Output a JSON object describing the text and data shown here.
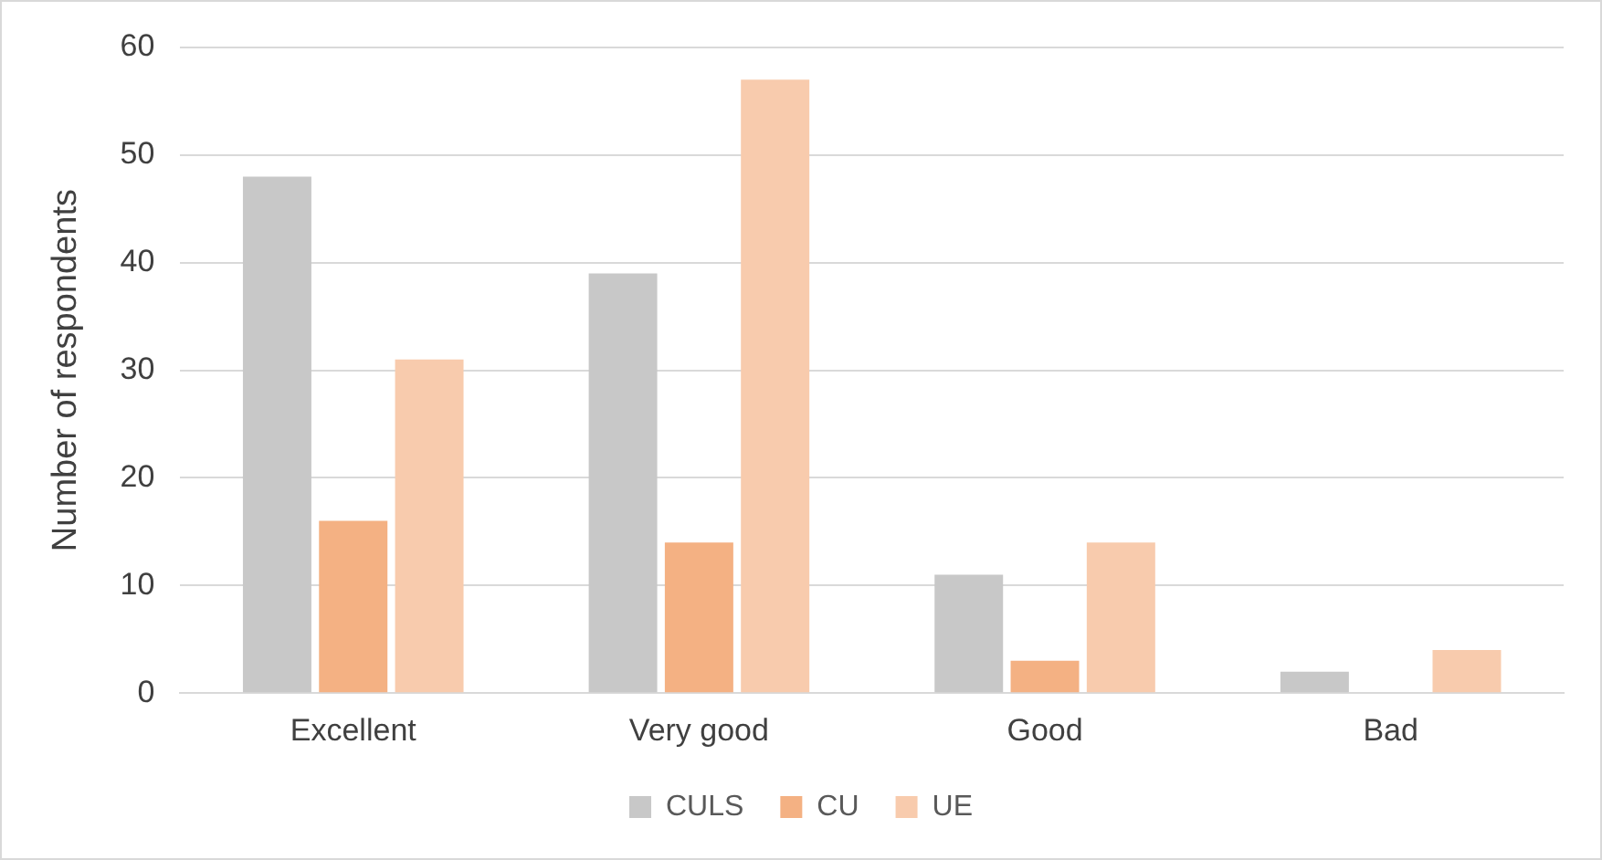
{
  "chart_data": {
    "type": "bar",
    "ylabel": "Number of respondents",
    "categories": [
      "Excellent",
      "Very good",
      "Good",
      "Bad"
    ],
    "series": [
      {
        "name": "CULS",
        "color": "#c8c8c8",
        "values": [
          48,
          39,
          11,
          2
        ]
      },
      {
        "name": "CU",
        "color": "#f4b183",
        "values": [
          16,
          14,
          3,
          0
        ]
      },
      {
        "name": "UE",
        "color": "#f8cbad",
        "values": [
          31,
          57,
          14,
          4
        ]
      }
    ],
    "ylim": [
      0,
      60
    ],
    "yticks": [
      0,
      10,
      20,
      30,
      40,
      50,
      60
    ],
    "grid": "y",
    "legend": "bottom"
  }
}
